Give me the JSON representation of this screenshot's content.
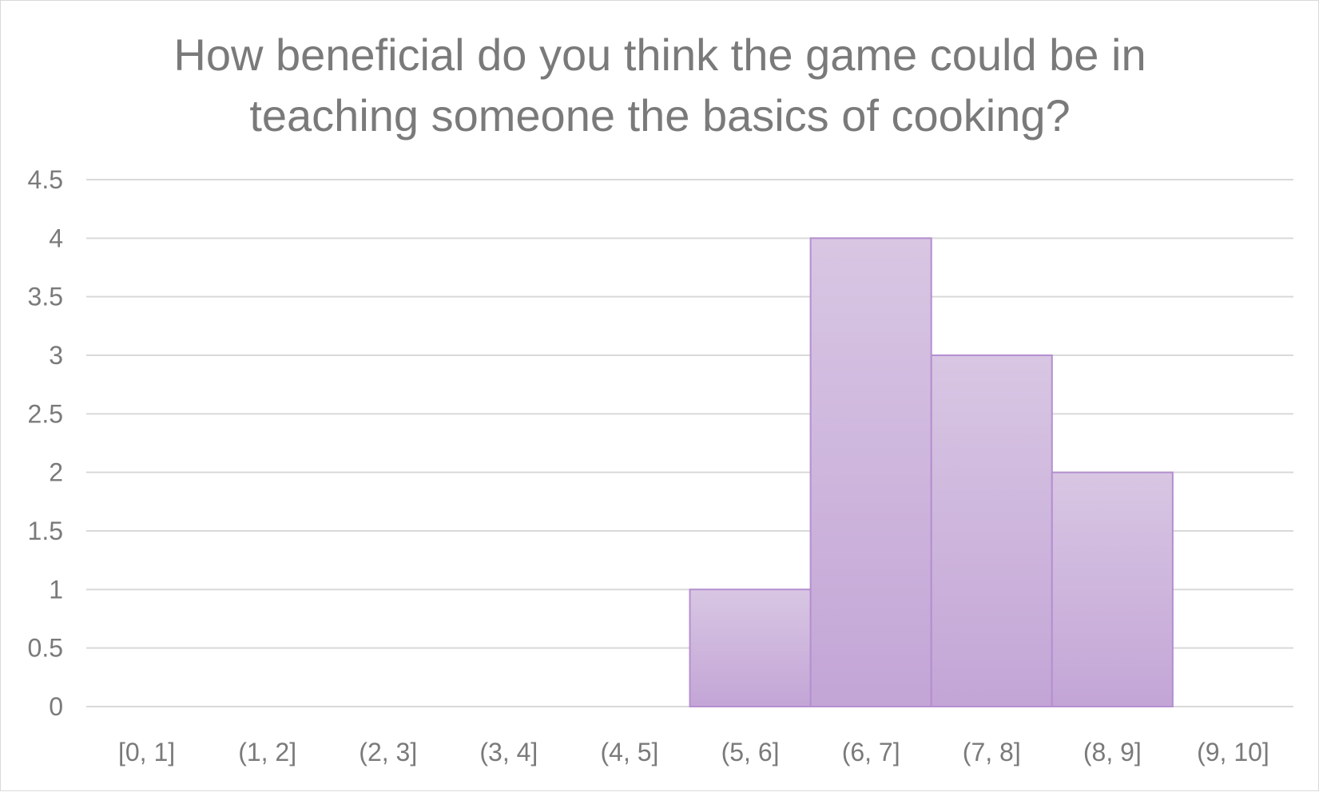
{
  "chart_data": {
    "type": "bar",
    "title_lines": [
      "How beneficial do you think the game could be in",
      "teaching someone the basics of cooking?"
    ],
    "categories": [
      "[0, 1]",
      "(1, 2]",
      "(2, 3]",
      "(3, 4]",
      "(4, 5]",
      "(5, 6]",
      "(6, 7]",
      "(7, 8]",
      "(8, 9]",
      "(9, 10]"
    ],
    "values": [
      0,
      0,
      0,
      0,
      0,
      1,
      4,
      3,
      2,
      0
    ],
    "y_ticks": [
      "0",
      "0.5",
      "1",
      "1.5",
      "2",
      "2.5",
      "3",
      "3.5",
      "4",
      "4.5"
    ],
    "ylim": [
      0,
      4.5
    ],
    "grid": true,
    "legend": "none",
    "colors": {
      "bar_top": "#d8c6e3",
      "bar_bottom": "#c3a5d6",
      "bar_edge": "#b58fd0",
      "grid": "#d9d9d9",
      "text": "#7a7a7a"
    }
  }
}
